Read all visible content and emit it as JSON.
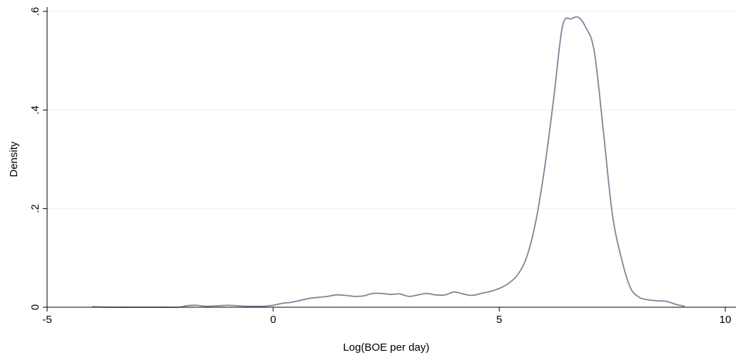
{
  "chart_data": {
    "type": "line",
    "title": "",
    "xlabel": "Log(BOE per day)",
    "ylabel": "Density",
    "xlim": [
      -5,
      10
    ],
    "ylim": [
      0,
      0.6
    ],
    "x_ticks": [
      -5,
      0,
      5,
      10
    ],
    "x_tick_labels": [
      "-5",
      "0",
      "5",
      "10"
    ],
    "y_ticks": [
      0,
      0.2,
      0.4,
      0.6
    ],
    "y_tick_labels": [
      "0",
      ".2",
      ".4",
      ".6"
    ],
    "grid": "horizontal",
    "colors": {
      "line": "#7f8599",
      "grid": "#eef0f2",
      "axis": "#000000"
    },
    "series": [
      {
        "x": [
          -4.0,
          -3.5,
          -3.0,
          -2.5,
          -2.1,
          -1.9,
          -1.7,
          -1.5,
          -1.2,
          -1.0,
          -0.8,
          -0.6,
          -0.4,
          -0.2,
          0.0,
          0.2,
          0.4,
          0.6,
          0.8,
          1.0,
          1.2,
          1.4,
          1.6,
          1.8,
          2.0,
          2.2,
          2.4,
          2.6,
          2.8,
          3.0,
          3.2,
          3.4,
          3.6,
          3.8,
          4.0,
          4.2,
          4.4,
          4.6,
          4.8,
          5.0,
          5.2,
          5.4,
          5.6,
          5.8,
          6.0,
          6.2,
          6.4,
          6.6,
          6.75,
          6.9,
          7.1,
          7.3,
          7.5,
          7.7,
          7.9,
          8.1,
          8.3,
          8.5,
          8.7,
          8.9,
          9.1
        ],
        "y": [
          0.001,
          0.0,
          0.0,
          0.0,
          0.0,
          0.003,
          0.004,
          0.002,
          0.003,
          0.004,
          0.003,
          0.002,
          0.002,
          0.002,
          0.004,
          0.008,
          0.01,
          0.014,
          0.018,
          0.02,
          0.022,
          0.025,
          0.024,
          0.022,
          0.023,
          0.028,
          0.028,
          0.026,
          0.027,
          0.022,
          0.025,
          0.028,
          0.025,
          0.025,
          0.031,
          0.027,
          0.024,
          0.028,
          0.032,
          0.038,
          0.048,
          0.065,
          0.1,
          0.17,
          0.28,
          0.42,
          0.57,
          0.585,
          0.588,
          0.57,
          0.52,
          0.36,
          0.19,
          0.1,
          0.04,
          0.02,
          0.015,
          0.013,
          0.012,
          0.006,
          0.002
        ]
      }
    ]
  }
}
